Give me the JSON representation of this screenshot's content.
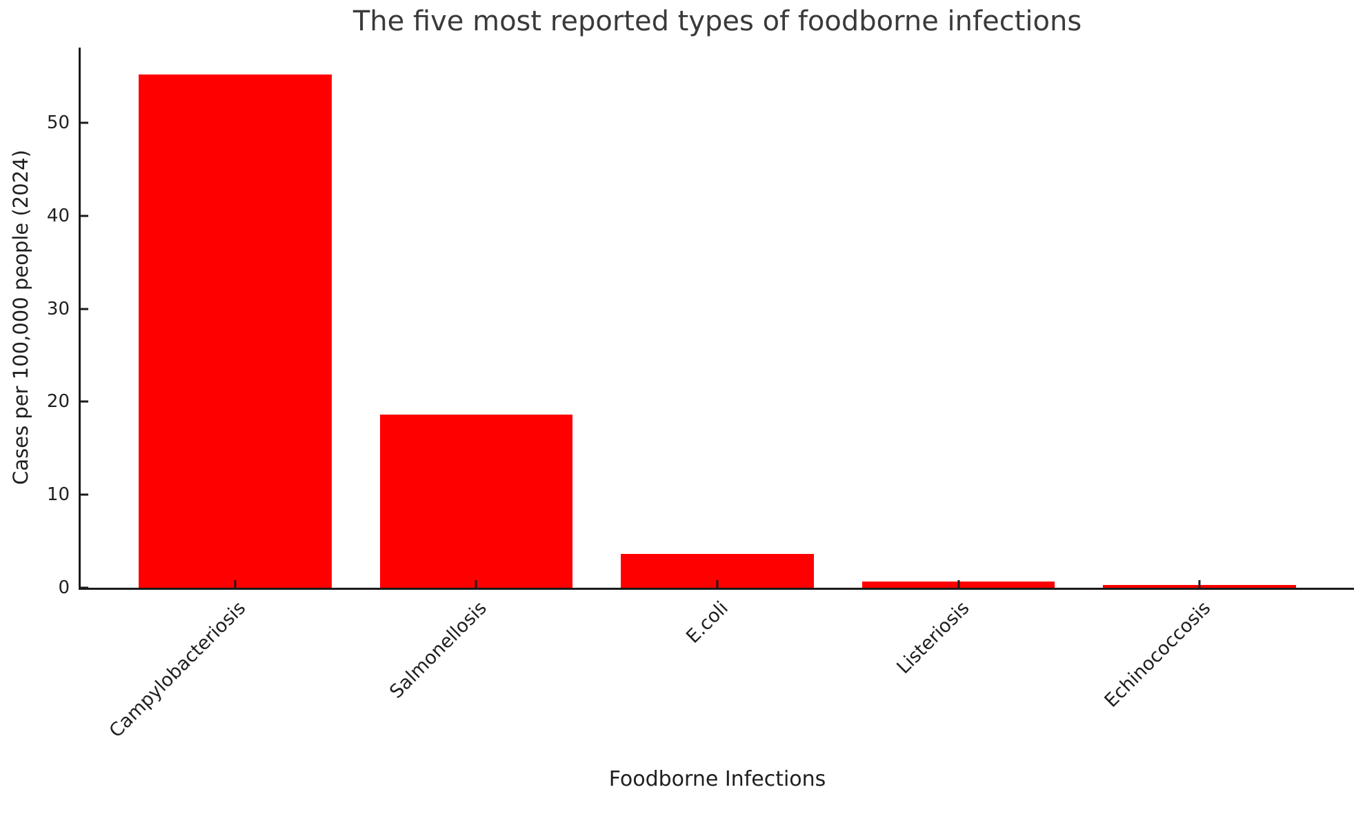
{
  "figure": {
    "background_color": "#ffffff",
    "axis_color": "#1a1a1a",
    "text_color": "#1f1f1f",
    "title_color": "#3a3a3a"
  },
  "chart_data": {
    "type": "bar",
    "title": "The five most reported types of foodborne infections",
    "xlabel": "Foodborne Infections",
    "ylabel": "Cases per 100,000 people (2024)",
    "categories": [
      "Campylobacteriosis",
      "Salmonellosis",
      "E.coli",
      "Listeriosis",
      "Echinococcosis"
    ],
    "values": [
      55.2,
      18.6,
      3.6,
      0.7,
      0.3
    ],
    "bar_color": "#ff0000",
    "ylim": [
      0,
      58.1
    ],
    "yticks": [
      0,
      10,
      20,
      30,
      40,
      50
    ],
    "x_range": [
      -0.64,
      4.64
    ],
    "bar_width_fraction": 0.8,
    "xtick_label_rotation_deg": 45,
    "tick_direction": "in",
    "grid": false,
    "legend": "none"
  }
}
